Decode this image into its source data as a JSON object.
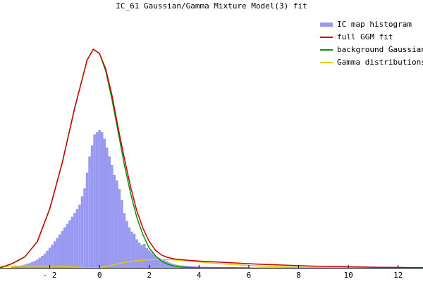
{
  "chart_data": {
    "type": "line",
    "title": "IC_61 Gaussian/Gamma Mixture Model(3) fit",
    "xlabel": "",
    "ylabel": "",
    "xlim": [
      -4,
      13
    ],
    "ylim": [
      0,
      1
    ],
    "grid": false,
    "legend_position": "top-right",
    "x_ticks": [
      -2,
      0,
      2,
      4,
      6,
      8,
      10,
      12
    ],
    "x_tick_labels": [
      "- 2",
      "0",
      "2",
      "4",
      "6",
      "8",
      "10",
      "12"
    ],
    "legend": [
      {
        "label": "IC map histogram",
        "color": "#9999f2",
        "kind": "histogram"
      },
      {
        "label": "full GGM fit",
        "color": "#cc0000",
        "kind": "full_fit"
      },
      {
        "label": "background Gaussian",
        "color": "#009900",
        "kind": "gaussian"
      },
      {
        "label": "Gamma distributions",
        "color": "#e6c800",
        "kind": "gamma"
      }
    ],
    "histogram": {
      "color": "#9999f2",
      "bin_width": 0.1,
      "bins": [
        [
          -3.5,
          0.003
        ],
        [
          -3.4,
          0.005
        ],
        [
          -3.3,
          0.007
        ],
        [
          -3.2,
          0.009
        ],
        [
          -3.1,
          0.012
        ],
        [
          -3.0,
          0.015
        ],
        [
          -2.9,
          0.018
        ],
        [
          -2.8,
          0.022
        ],
        [
          -2.7,
          0.027
        ],
        [
          -2.6,
          0.032
        ],
        [
          -2.5,
          0.038
        ],
        [
          -2.4,
          0.046
        ],
        [
          -2.3,
          0.055
        ],
        [
          -2.2,
          0.065
        ],
        [
          -2.1,
          0.078
        ],
        [
          -2.0,
          0.092
        ],
        [
          -1.9,
          0.106
        ],
        [
          -1.8,
          0.121
        ],
        [
          -1.7,
          0.137
        ],
        [
          -1.6,
          0.153
        ],
        [
          -1.5,
          0.169
        ],
        [
          -1.4,
          0.185
        ],
        [
          -1.3,
          0.201
        ],
        [
          -1.2,
          0.217
        ],
        [
          -1.1,
          0.234
        ],
        [
          -1.0,
          0.251
        ],
        [
          -0.9,
          0.269
        ],
        [
          -0.8,
          0.289
        ],
        [
          -0.7,
          0.327
        ],
        [
          -0.6,
          0.364
        ],
        [
          -0.5,
          0.435
        ],
        [
          -0.4,
          0.51
        ],
        [
          -0.3,
          0.56
        ],
        [
          -0.2,
          0.61
        ],
        [
          -0.1,
          0.62
        ],
        [
          0.0,
          0.63
        ],
        [
          0.1,
          0.62
        ],
        [
          0.2,
          0.59
        ],
        [
          0.3,
          0.55
        ],
        [
          0.4,
          0.51
        ],
        [
          0.5,
          0.47
        ],
        [
          0.6,
          0.425
        ],
        [
          0.7,
          0.4
        ],
        [
          0.8,
          0.36
        ],
        [
          0.9,
          0.31
        ],
        [
          1.0,
          0.25
        ],
        [
          1.1,
          0.215
        ],
        [
          1.2,
          0.185
        ],
        [
          1.3,
          0.165
        ],
        [
          1.4,
          0.155
        ],
        [
          1.5,
          0.13
        ],
        [
          1.6,
          0.115
        ],
        [
          1.7,
          0.105
        ],
        [
          1.8,
          0.11
        ],
        [
          1.9,
          0.09
        ],
        [
          2.0,
          0.08
        ],
        [
          2.1,
          0.07
        ],
        [
          2.2,
          0.06
        ],
        [
          2.3,
          0.05
        ],
        [
          2.4,
          0.045
        ],
        [
          2.5,
          0.04
        ],
        [
          2.6,
          0.035
        ],
        [
          2.7,
          0.03
        ],
        [
          2.8,
          0.025
        ],
        [
          2.9,
          0.02
        ],
        [
          3.0,
          0.017
        ],
        [
          3.1,
          0.014
        ],
        [
          3.2,
          0.012
        ],
        [
          3.3,
          0.011
        ],
        [
          3.4,
          0.01
        ],
        [
          3.5,
          0.009
        ],
        [
          3.6,
          0.008
        ],
        [
          3.7,
          0.007
        ],
        [
          3.8,
          0.007
        ],
        [
          3.9,
          0.006
        ],
        [
          4.0,
          0.006
        ],
        [
          4.1,
          0.005
        ],
        [
          4.2,
          0.005
        ],
        [
          4.3,
          0.005
        ],
        [
          4.4,
          0.004
        ],
        [
          4.5,
          0.004
        ],
        [
          4.6,
          0.004
        ],
        [
          4.7,
          0.004
        ],
        [
          4.8,
          0.003
        ],
        [
          4.9,
          0.003
        ],
        [
          5.0,
          0.003
        ],
        [
          5.1,
          0.003
        ],
        [
          5.2,
          0.003
        ],
        [
          5.3,
          0.003
        ],
        [
          5.4,
          0.003
        ],
        [
          5.5,
          0.003
        ],
        [
          5.6,
          0.002
        ],
        [
          5.7,
          0.002
        ],
        [
          5.8,
          0.002
        ],
        [
          5.9,
          0.002
        ],
        [
          6.0,
          0.002
        ],
        [
          6.1,
          0.002
        ],
        [
          6.2,
          0.002
        ],
        [
          6.3,
          0.002
        ],
        [
          6.4,
          0.002
        ],
        [
          6.5,
          0.002
        ],
        [
          6.6,
          0.002
        ],
        [
          6.7,
          0.002
        ],
        [
          6.8,
          0.002
        ],
        [
          6.9,
          0.002
        ],
        [
          7.0,
          0.002
        ],
        [
          7.1,
          0.002
        ],
        [
          7.2,
          0.002
        ],
        [
          7.3,
          0.002
        ],
        [
          7.4,
          0.002
        ],
        [
          7.5,
          0.002
        ],
        [
          7.6,
          0.002
        ],
        [
          7.7,
          0.002
        ],
        [
          7.8,
          0.002
        ],
        [
          7.9,
          0.002
        ],
        [
          8.0,
          0.002
        ],
        [
          8.1,
          0.002
        ],
        [
          8.2,
          0.002
        ],
        [
          8.3,
          0.002
        ],
        [
          8.4,
          0.002
        ],
        [
          8.5,
          0.002
        ],
        [
          8.6,
          0.002
        ],
        [
          8.7,
          0.002
        ],
        [
          8.8,
          0.002
        ],
        [
          8.9,
          0.002
        ],
        [
          9.0,
          0.002
        ],
        [
          9.1,
          0.002
        ],
        [
          9.2,
          0.002
        ],
        [
          9.3,
          0.002
        ],
        [
          9.4,
          0.002
        ],
        [
          9.5,
          0.002
        ],
        [
          9.6,
          0.002
        ],
        [
          9.7,
          0.002
        ],
        [
          9.8,
          0.002
        ],
        [
          9.9,
          0.002
        ],
        [
          10.0,
          0.002
        ],
        [
          10.1,
          0.002
        ],
        [
          10.2,
          0.002
        ],
        [
          10.3,
          0.002
        ],
        [
          10.4,
          0.002
        ],
        [
          10.5,
          0.002
        ],
        [
          10.6,
          0.002
        ],
        [
          10.7,
          0.002
        ],
        [
          10.8,
          0.002
        ],
        [
          10.9,
          0.002
        ],
        [
          11.0,
          0.002
        ],
        [
          11.1,
          0.002
        ],
        [
          11.2,
          0.002
        ],
        [
          11.3,
          0.002
        ],
        [
          11.4,
          0.002
        ],
        [
          11.5,
          0.002
        ],
        [
          11.6,
          0.002
        ],
        [
          11.7,
          0.002
        ],
        [
          11.8,
          0.002
        ],
        [
          11.9,
          0.002
        ],
        [
          12.0,
          0.002
        ],
        [
          12.1,
          0.002
        ],
        [
          12.2,
          0.002
        ],
        [
          12.3,
          0.002
        ],
        [
          12.4,
          0.002
        ],
        [
          12.5,
          0.002
        ],
        [
          12.6,
          0.002
        ],
        [
          12.7,
          0.002
        ],
        [
          12.8,
          0.002
        ],
        [
          12.9,
          0.002
        ]
      ]
    },
    "series": [
      {
        "legend_label": "full GGM fit",
        "color": "#cc0000",
        "x": [
          -4.0,
          -3.5,
          -3.0,
          -2.5,
          -2.0,
          -1.5,
          -1.0,
          -0.5,
          -0.25,
          0.0,
          0.25,
          0.5,
          0.75,
          1.0,
          1.25,
          1.5,
          1.75,
          2.0,
          2.25,
          2.5,
          2.75,
          3.0,
          3.25,
          3.5,
          4.0,
          4.5,
          5.0,
          5.5,
          6.0,
          6.5,
          7.0,
          7.5,
          8.0,
          8.5,
          9.0,
          9.5,
          10.0,
          10.5,
          11.0,
          11.5,
          12.0,
          12.5,
          13.0
        ],
        "y": [
          0.0,
          0.02,
          0.05,
          0.12,
          0.27,
          0.48,
          0.73,
          0.95,
          1.0,
          0.98,
          0.91,
          0.79,
          0.64,
          0.5,
          0.37,
          0.26,
          0.18,
          0.12,
          0.08,
          0.058,
          0.047,
          0.041,
          0.038,
          0.035,
          0.031,
          0.028,
          0.025,
          0.022,
          0.019,
          0.016,
          0.014,
          0.012,
          0.01,
          0.008,
          0.007,
          0.006,
          0.005,
          0.004,
          0.003,
          0.002,
          0.002,
          0.001,
          0.001
        ]
      },
      {
        "legend_label": "background Gaussian",
        "color": "#009900",
        "x": [
          -4.0,
          -3.5,
          -3.0,
          -2.5,
          -2.0,
          -1.5,
          -1.0,
          -0.5,
          -0.25,
          0.0,
          0.25,
          0.5,
          0.75,
          1.0,
          1.25,
          1.5,
          1.75,
          2.0,
          2.25,
          2.5,
          2.75,
          3.0,
          3.25,
          3.5,
          4.0,
          4.5,
          5.0,
          5.5,
          6.0
        ],
        "y": [
          0.0,
          0.02,
          0.05,
          0.12,
          0.27,
          0.48,
          0.73,
          0.95,
          1.0,
          0.98,
          0.9,
          0.77,
          0.62,
          0.47,
          0.34,
          0.23,
          0.15,
          0.09,
          0.055,
          0.03,
          0.016,
          0.008,
          0.004,
          0.002,
          0.0,
          0.0,
          0.0,
          0.0,
          0.0
        ]
      },
      {
        "legend_label": "Gamma distributions",
        "color": "#e6c800",
        "x": [
          -4.0,
          -3.0,
          -2.0,
          -1.5,
          -1.0,
          -0.5,
          0.0,
          0.5,
          1.0,
          1.5,
          2.0,
          2.5,
          3.0,
          3.5,
          4.0,
          4.5,
          5.0,
          5.5,
          6.0,
          6.5,
          7.0,
          7.5,
          8.0,
          9.0,
          10.0,
          11.0,
          12.0,
          13.0
        ],
        "y": [
          0.006,
          0.008,
          0.008,
          0.006,
          0.004,
          0.001,
          0.0,
          0.012,
          0.025,
          0.033,
          0.037,
          0.038,
          0.036,
          0.032,
          0.027,
          0.022,
          0.018,
          0.014,
          0.011,
          0.008,
          0.006,
          0.004,
          0.003,
          0.001,
          0.0,
          0.0,
          0.0,
          0.0
        ]
      }
    ]
  }
}
